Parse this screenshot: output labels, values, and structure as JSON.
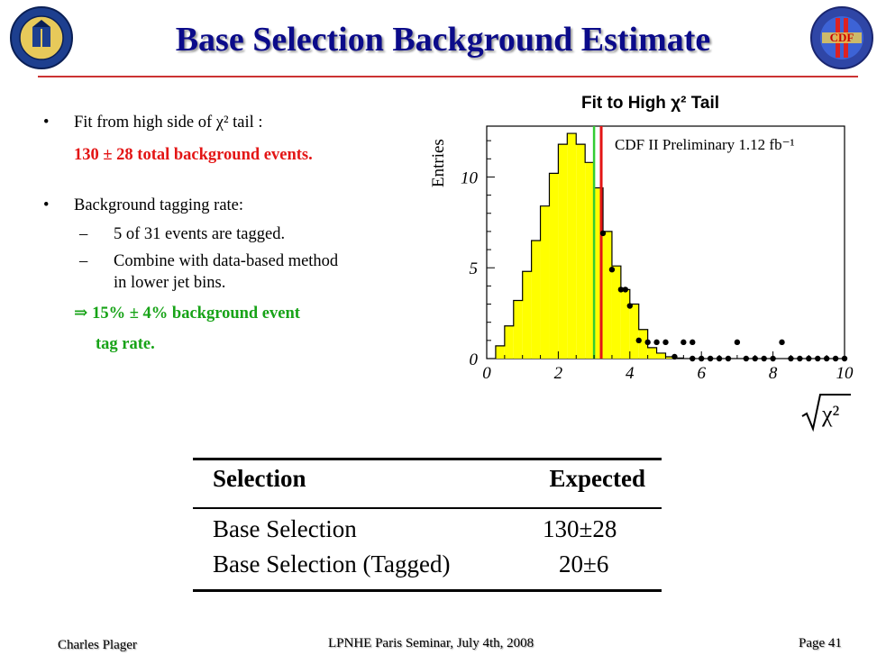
{
  "slide": {
    "title": "Base Selection Background Estimate",
    "bullets": {
      "b1_text": "Fit from high side of χ² tail :",
      "b1_result": "130 ± 28 total background events.",
      "b2_text": "Background tagging rate:",
      "sub1_dash": "–",
      "sub1": "5 of 31 events are tagged.",
      "sub2_dash": "–",
      "sub2_line1": "Combine with data-based method",
      "sub2_line2": "in lower jet bins.",
      "conclusion_line1": "⇒ 15% ± 4% background event",
      "conclusion_line2": "tag rate."
    },
    "table": {
      "headers": [
        "Selection",
        "Expected"
      ],
      "rows": [
        [
          "Base Selection",
          "130±28"
        ],
        [
          "Base Selection (Tagged)",
          "20±6"
        ]
      ]
    },
    "footer": {
      "author": "Charles Plager",
      "event": "LPNHE Paris Seminar, July 4th, 2008",
      "page": "Page 41"
    }
  },
  "chart_data": {
    "type": "histogram",
    "title": "Fit to High χ² Tail",
    "annotation": "CDF II Preliminary 1.12 fb⁻¹",
    "ylabel": "Entries",
    "xlabel": "√χ²",
    "xlim": [
      0,
      10
    ],
    "ylim": [
      0,
      12.8
    ],
    "xticks": [
      "0",
      "2",
      "4",
      "6",
      "8",
      "10"
    ],
    "yticks": [
      "0",
      "5",
      "10"
    ],
    "bin_width": 0.25,
    "histogram_bins_x": [
      0.25,
      0.5,
      0.75,
      1.0,
      1.25,
      1.5,
      1.75,
      2.0,
      2.25,
      2.5,
      2.75,
      3.0,
      3.25,
      3.5,
      3.75,
      4.0,
      4.25,
      4.5,
      4.75,
      5.0,
      5.25
    ],
    "histogram_values": [
      0.7,
      1.8,
      3.2,
      4.8,
      6.5,
      8.4,
      10.2,
      11.8,
      12.4,
      11.8,
      10.8,
      9.4,
      7.0,
      5.1,
      3.8,
      3.0,
      1.6,
      0.6,
      0.3,
      0.1,
      0.03
    ],
    "histogram_color": "#ffff00",
    "green_line_x": 3.0,
    "red_line_x": 3.2,
    "green_color": "#33cc33",
    "red_color": "#e31515",
    "data_points": [
      [
        3.25,
        6.9
      ],
      [
        3.5,
        4.9
      ],
      [
        3.75,
        3.8
      ],
      [
        3.875,
        3.8
      ],
      [
        4.0,
        2.9
      ],
      [
        4.25,
        1.0
      ],
      [
        4.5,
        0.9
      ],
      [
        4.75,
        0.9
      ],
      [
        5.0,
        0.9
      ],
      [
        5.25,
        0.1
      ],
      [
        5.5,
        0.9
      ],
      [
        5.75,
        0.9
      ],
      [
        5.75,
        0.0
      ],
      [
        6.0,
        0.0
      ],
      [
        6.25,
        0.0
      ],
      [
        6.5,
        0.0
      ],
      [
        6.75,
        0.0
      ],
      [
        7.0,
        0.9
      ],
      [
        7.25,
        0.0
      ],
      [
        7.5,
        0.0
      ],
      [
        7.75,
        0.0
      ],
      [
        8.0,
        0.0
      ],
      [
        8.25,
        0.9
      ],
      [
        8.5,
        0.0
      ],
      [
        8.75,
        0.0
      ],
      [
        9.0,
        0.0
      ],
      [
        9.25,
        0.0
      ],
      [
        9.5,
        0.0
      ],
      [
        9.75,
        0.0
      ],
      [
        10.0,
        0.0
      ]
    ]
  }
}
